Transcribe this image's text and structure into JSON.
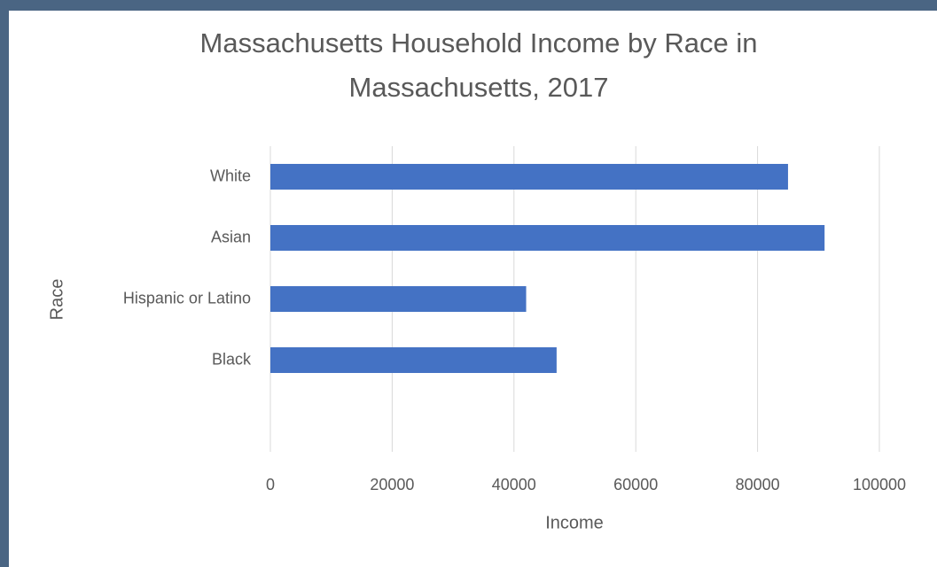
{
  "chart_data": {
    "type": "bar",
    "orientation": "horizontal",
    "title": "Massachusetts Household Income by Race in Massachusetts, 2017",
    "x_label": "Income",
    "y_label": "Race",
    "categories": [
      "White",
      "Asian",
      "Hispanic or Latino",
      "Black",
      null
    ],
    "values": [
      85000,
      91000,
      42000,
      47000,
      null
    ],
    "color": "#4472c4",
    "xlim": [
      0,
      100000
    ],
    "xticks": [
      0,
      20000,
      40000,
      60000,
      80000,
      100000
    ],
    "grid": true
  }
}
